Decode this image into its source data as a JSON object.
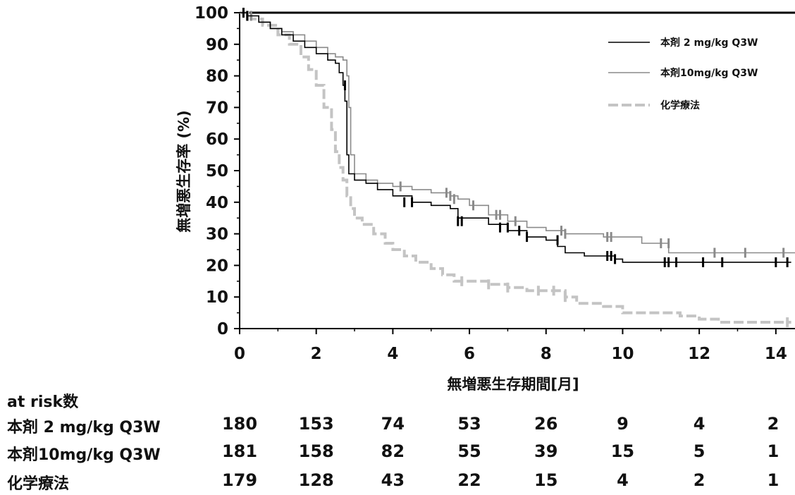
{
  "chart_data": {
    "type": "line",
    "title": "",
    "xlabel": "無増悪生存期間[月]",
    "ylabel": "無増悪生存率 (%)",
    "xlim": [
      0,
      14.5
    ],
    "ylim": [
      0,
      100
    ],
    "xticks": [
      0,
      2,
      4,
      6,
      8,
      10,
      12,
      14
    ],
    "yticks": [
      0,
      10,
      20,
      30,
      40,
      50,
      60,
      70,
      80,
      90,
      100
    ],
    "legend_position": "top-right",
    "series": [
      {
        "name": "本剤 2 mg/kg Q3W",
        "color": "#000000",
        "style": "solid",
        "x": [
          0,
          0.2,
          0.5,
          0.8,
          1.1,
          1.4,
          1.7,
          2.0,
          2.3,
          2.5,
          2.6,
          2.7,
          2.75,
          2.8,
          2.85,
          3.0,
          3.3,
          3.6,
          4.0,
          4.5,
          5.0,
          5.5,
          5.7,
          6.5,
          7.0,
          7.5,
          8.0,
          8.3,
          8.5,
          9.0,
          9.5,
          9.8,
          10.0,
          12.5,
          14.4
        ],
        "y": [
          100,
          99,
          97,
          95,
          93,
          91,
          89,
          87,
          85,
          84,
          81,
          77,
          72,
          55,
          49,
          47,
          46,
          44,
          42,
          40,
          39,
          38,
          35,
          33,
          31,
          29,
          28,
          26,
          24,
          23,
          23,
          22,
          21,
          21,
          21
        ],
        "censor_x": [
          0.1,
          0.2,
          2.75,
          4.3,
          4.5,
          5.7,
          5.8,
          6.8,
          7.0,
          7.3,
          7.5,
          8.3,
          9.6,
          9.7,
          9.8,
          11.1,
          11.2,
          11.4,
          12.1,
          12.6,
          14.0,
          14.3
        ],
        "censor_y": [
          100,
          99,
          77,
          40,
          40,
          34,
          34,
          32,
          32,
          31,
          29,
          28,
          23,
          23,
          22,
          21,
          21,
          21,
          21,
          21,
          21,
          21
        ]
      },
      {
        "name": "本剤10mg/kg Q3W",
        "color": "#8a8a8a",
        "style": "solid",
        "x": [
          0,
          0.2,
          0.5,
          0.8,
          1.1,
          1.4,
          1.7,
          2.0,
          2.3,
          2.5,
          2.7,
          2.8,
          2.85,
          2.9,
          3.0,
          3.3,
          3.6,
          4.0,
          4.5,
          5.0,
          5.5,
          5.7,
          6.0,
          6.5,
          7.0,
          7.5,
          8.0,
          8.5,
          9.0,
          9.5,
          10.0,
          10.5,
          11.0,
          11.2,
          12.0,
          14.5
        ],
        "y": [
          100,
          99,
          97,
          95,
          94,
          93,
          91,
          89,
          87,
          86,
          85,
          80,
          70,
          55,
          49,
          47,
          46,
          45,
          44,
          43,
          42,
          41,
          39,
          36,
          34,
          32,
          31,
          30,
          30,
          29,
          29,
          27,
          27,
          24,
          24,
          24
        ],
        "censor_x": [
          0.1,
          0.3,
          4.2,
          5.4,
          5.5,
          5.6,
          6.1,
          6.7,
          6.8,
          7.2,
          8.4,
          8.5,
          9.6,
          9.7,
          11.0,
          11.2,
          12.4,
          13.2,
          14.2
        ],
        "censor_y": [
          100,
          99,
          45,
          43,
          42,
          41,
          39,
          36,
          36,
          34,
          31,
          30,
          29,
          29,
          27,
          27,
          24,
          24,
          24
        ]
      },
      {
        "name": "化学療法",
        "color": "#c4c4c4",
        "style": "dashed",
        "x": [
          0,
          0.3,
          0.6,
          1.0,
          1.3,
          1.6,
          1.8,
          2.0,
          2.2,
          2.4,
          2.5,
          2.6,
          2.7,
          2.8,
          2.9,
          3.0,
          3.2,
          3.5,
          3.8,
          4.0,
          4.3,
          4.6,
          5.0,
          5.3,
          5.6,
          6.0,
          6.5,
          7.0,
          7.5,
          8.0,
          8.5,
          8.8,
          9.5,
          10.0,
          11.0,
          11.5,
          12.0,
          12.5,
          14.4
        ],
        "y": [
          100,
          98,
          96,
          93,
          90,
          86,
          82,
          77,
          70,
          63,
          56,
          51,
          47,
          42,
          38,
          35,
          33,
          30,
          27,
          25,
          23,
          21,
          19,
          17,
          15,
          15,
          14,
          13,
          12,
          12,
          10,
          8,
          7,
          5,
          5,
          4,
          3,
          2,
          2
        ],
        "censor_x": [
          0.2,
          5.8,
          6.5,
          7.0,
          7.8,
          8.2,
          8.5,
          14.3
        ],
        "censor_y": [
          99,
          15,
          14,
          13,
          12,
          12,
          10,
          2
        ]
      }
    ],
    "at_risk": {
      "title": "at risk数",
      "times": [
        0,
        2,
        4,
        6,
        8,
        10,
        12,
        14
      ],
      "rows": [
        {
          "label": "本剤 2 mg/kg Q3W",
          "values": [
            "180",
            "153",
            "74",
            "53",
            "26",
            "9",
            "4",
            "2"
          ]
        },
        {
          "label": "本剤10mg/kg Q3W",
          "values": [
            "181",
            "158",
            "82",
            "55",
            "39",
            "15",
            "5",
            "1"
          ]
        },
        {
          "label": "化学療法",
          "values": [
            "179",
            "128",
            "43",
            "22",
            "15",
            "4",
            "2",
            "1"
          ]
        }
      ]
    }
  }
}
